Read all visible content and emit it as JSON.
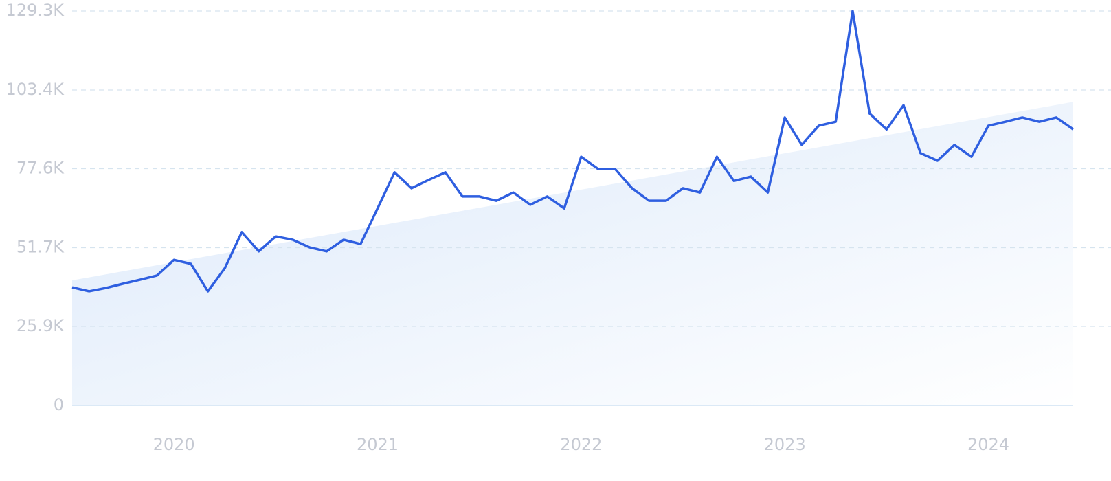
{
  "chart_data": {
    "type": "line",
    "categories": [
      null,
      null,
      null,
      null,
      null,
      null,
      "2020",
      null,
      null,
      null,
      null,
      null,
      null,
      null,
      null,
      null,
      null,
      null,
      "2021",
      null,
      null,
      null,
      null,
      null,
      null,
      null,
      null,
      null,
      null,
      null,
      "2022",
      null,
      null,
      null,
      null,
      null,
      null,
      null,
      null,
      null,
      null,
      null,
      "2023",
      null,
      null,
      null,
      null,
      null,
      null,
      null,
      null,
      null,
      null,
      null,
      "2024",
      null,
      null,
      null,
      null,
      null
    ],
    "series": [
      {
        "color": "#2f5fe0",
        "values": [
          38700,
          37400,
          38500,
          39900,
          41200,
          42600,
          47700,
          46400,
          37400,
          45000,
          56800,
          50500,
          55400,
          54300,
          51800,
          50500,
          54300,
          52900,
          64600,
          76400,
          71200,
          73900,
          76400,
          68500,
          68500,
          67100,
          69800,
          65800,
          68500,
          64600,
          81500,
          77500,
          77500,
          71200,
          67100,
          67100,
          71200,
          69800,
          81500,
          73600,
          75000,
          69800,
          94400,
          85400,
          91700,
          93000,
          129300,
          95700,
          90500,
          98400,
          82700,
          80200,
          85400,
          81500,
          91700,
          93000,
          94400,
          93000,
          94400,
          90500
        ]
      }
    ],
    "trend": {
      "values": [
        41000,
        99500
      ],
      "color": "#dce9fa"
    },
    "ylim": [
      0,
      129300
    ],
    "yticks": [
      0,
      {
        "value": 25900,
        "label": "25.9K"
      },
      {
        "value": 51700,
        "label": "51.7K"
      },
      {
        "value": 77600,
        "label": "77.6K"
      },
      {
        "value": 103400,
        "label": "103.4K"
      },
      {
        "value": 129300,
        "label": "129.3K"
      }
    ],
    "grid": true
  }
}
